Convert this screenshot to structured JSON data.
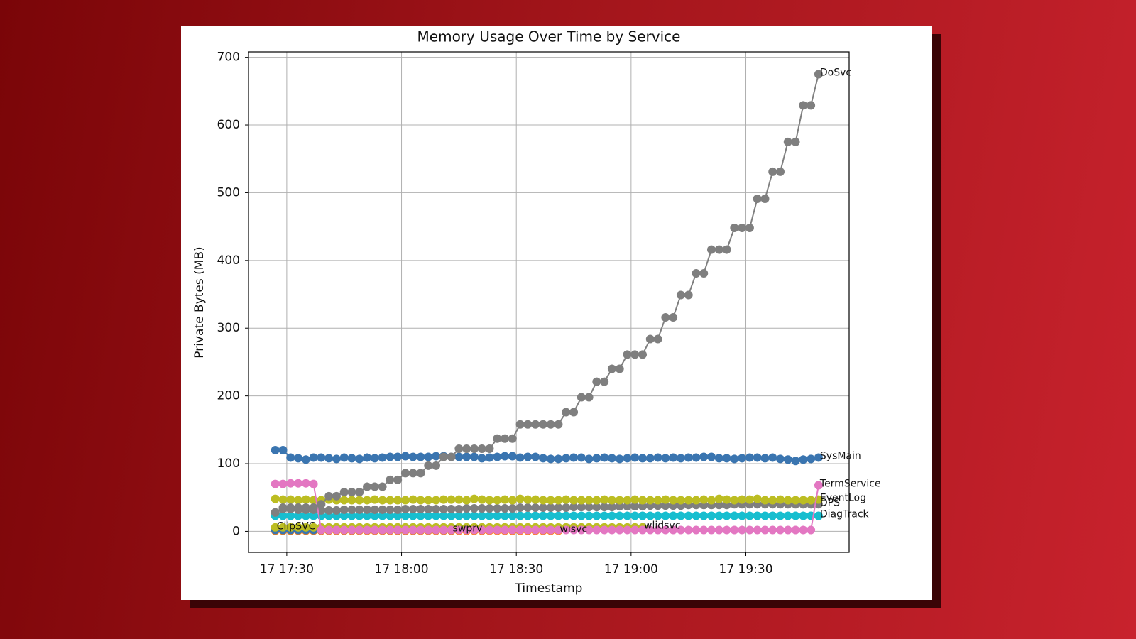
{
  "chart_data": {
    "type": "line",
    "title": "Memory Usage Over Time by Service",
    "xlabel": "Timestamp",
    "ylabel": "Private Bytes (MB)",
    "x": [
      "17 17:27",
      "17 17:29",
      "17 17:31",
      "17 17:33",
      "17 17:35",
      "17 17:37",
      "17 17:39",
      "17 17:41",
      "17 17:43",
      "17 17:45",
      "17 17:47",
      "17 17:49",
      "17 17:51",
      "17 17:53",
      "17 17:55",
      "17 17:57",
      "17 17:59",
      "17 18:01",
      "17 18:03",
      "17 18:05",
      "17 18:07",
      "17 18:09",
      "17 18:11",
      "17 18:13",
      "17 18:15",
      "17 18:17",
      "17 18:19",
      "17 18:21",
      "17 18:23",
      "17 18:25",
      "17 18:27",
      "17 18:29",
      "17 18:31",
      "17 18:33",
      "17 18:35",
      "17 18:37",
      "17 18:39",
      "17 18:41",
      "17 18:43",
      "17 18:45",
      "17 18:47",
      "17 18:49",
      "17 18:51",
      "17 18:53",
      "17 18:55",
      "17 18:57",
      "17 18:59",
      "17 19:01",
      "17 19:03",
      "17 19:05",
      "17 19:07",
      "17 19:09",
      "17 19:11",
      "17 19:13",
      "17 19:15",
      "17 19:17",
      "17 19:19",
      "17 19:21",
      "17 19:23",
      "17 19:25",
      "17 19:27",
      "17 19:29",
      "17 19:31",
      "17 19:33",
      "17 19:35",
      "17 19:37",
      "17 19:39",
      "17 19:41",
      "17 19:43",
      "17 19:45",
      "17 19:47",
      "17 19:49"
    ],
    "xlim": [
      "17 17:20",
      "17 19:57"
    ],
    "xticks": [
      "17 17:30",
      "17 18:00",
      "17 18:30",
      "17 19:00",
      "17 19:30"
    ],
    "ylim": [
      -31,
      708
    ],
    "yticks": [
      0,
      100,
      200,
      300,
      400,
      500,
      600,
      700
    ],
    "grid": true,
    "series": [
      {
        "name": "ClipSVC",
        "color": "#9467bd",
        "values": [
          5,
          null,
          null,
          null,
          null,
          null,
          null,
          null,
          null,
          null,
          null,
          null,
          null,
          null,
          null,
          null,
          null,
          null,
          null,
          null,
          null,
          null,
          null,
          null,
          null,
          null,
          null,
          null,
          null,
          null,
          null,
          null,
          null,
          null,
          null,
          null,
          null,
          null,
          null,
          null,
          null,
          null,
          null,
          null,
          null,
          null,
          null,
          null,
          null,
          null,
          null,
          null,
          null,
          null,
          null,
          null,
          null,
          null,
          null,
          null,
          null,
          null,
          null,
          null,
          null,
          null,
          null,
          null,
          null,
          null,
          null,
          null
        ]
      },
      {
        "name": "wisvc",
        "color": "#ff7f0e",
        "values": [
          1,
          1,
          1,
          1,
          1,
          1,
          1,
          1,
          1,
          1,
          1,
          1,
          1,
          1,
          1,
          1,
          1,
          1,
          1,
          1,
          1,
          1,
          1,
          1,
          1,
          1,
          1,
          1,
          1,
          1,
          1,
          1,
          1,
          1,
          1,
          1,
          1,
          1,
          null,
          null,
          null,
          null,
          null,
          null,
          null,
          null,
          null,
          null,
          null,
          null,
          null,
          null,
          null,
          null,
          null,
          null,
          null,
          null,
          null,
          null,
          null,
          null,
          null,
          null,
          null,
          null,
          null,
          null,
          null,
          null,
          null,
          null
        ]
      },
      {
        "name": "swprv",
        "color": "#3a75b0",
        "values": [
          2,
          2,
          2,
          2,
          2,
          2,
          2,
          2,
          2,
          2,
          2,
          2,
          2,
          2,
          2,
          2,
          2,
          2,
          2,
          2,
          2,
          2,
          2,
          2,
          null,
          null,
          null,
          null,
          null,
          null,
          null,
          null,
          null,
          null,
          null,
          null,
          null,
          null,
          null,
          null,
          null,
          null,
          null,
          null,
          null,
          null,
          null,
          null,
          null,
          null,
          null,
          null,
          null,
          null,
          null,
          null,
          null,
          null,
          null,
          null,
          null,
          null,
          null,
          null,
          null,
          null,
          null,
          null,
          null,
          null,
          null,
          null
        ]
      },
      {
        "name": "wlidsvc",
        "color": "#bcbd22",
        "values": [
          6,
          6,
          6,
          6,
          6,
          6,
          6,
          6,
          6,
          6,
          6,
          6,
          6,
          6,
          6,
          6,
          6,
          6,
          6,
          6,
          6,
          6,
          6,
          6,
          6,
          6,
          6,
          6,
          6,
          6,
          6,
          6,
          6,
          6,
          6,
          6,
          6,
          6,
          6,
          6,
          6,
          6,
          6,
          6,
          6,
          6,
          6,
          6,
          6,
          null,
          null,
          null,
          null,
          null,
          null,
          null,
          null,
          null,
          null,
          null,
          null,
          null,
          null,
          null,
          null,
          null,
          null,
          null,
          null,
          null,
          null,
          null
        ]
      },
      {
        "name": "DiagTrack",
        "color": "#17becf",
        "values": [
          23,
          23,
          23,
          23,
          23,
          23,
          23,
          23,
          23,
          23,
          23,
          23,
          23,
          23,
          23,
          23,
          23,
          23,
          23,
          23,
          23,
          23,
          23,
          23,
          23,
          23,
          23,
          23,
          23,
          23,
          23,
          23,
          23,
          23,
          23,
          23,
          23,
          23,
          23,
          23,
          23,
          23,
          23,
          23,
          23,
          23,
          23,
          23,
          23,
          23,
          23,
          23,
          23,
          23,
          23,
          23,
          23,
          23,
          23,
          23,
          23,
          23,
          23,
          23,
          23,
          23,
          23,
          23,
          23,
          23,
          23,
          23
        ]
      },
      {
        "name": "DPS",
        "color": "#7f7f7f",
        "values": [
          28,
          33,
          33,
          32,
          32,
          32,
          31,
          31,
          31,
          32,
          32,
          32,
          32,
          32,
          32,
          32,
          32,
          33,
          33,
          33,
          33,
          33,
          33,
          33,
          33,
          34,
          34,
          34,
          34,
          34,
          34,
          34,
          35,
          35,
          35,
          35,
          35,
          35,
          35,
          36,
          36,
          36,
          36,
          36,
          36,
          37,
          37,
          37,
          37,
          38,
          38,
          38,
          38,
          38,
          39,
          39,
          39,
          39,
          39,
          39,
          40,
          40,
          40,
          40,
          40,
          40,
          40,
          40,
          40,
          40,
          40,
          40
        ]
      },
      {
        "name": "EventLog",
        "color": "#bcbd22",
        "values": [
          48,
          47,
          47,
          46,
          47,
          46,
          46,
          47,
          46,
          46,
          46,
          46,
          46,
          47,
          46,
          46,
          46,
          46,
          47,
          46,
          46,
          46,
          47,
          47,
          47,
          46,
          48,
          47,
          46,
          46,
          47,
          46,
          48,
          47,
          47,
          46,
          46,
          46,
          47,
          46,
          46,
          46,
          46,
          47,
          46,
          46,
          46,
          47,
          46,
          46,
          46,
          47,
          46,
          46,
          46,
          46,
          47,
          46,
          48,
          47,
          46,
          47,
          47,
          48,
          46,
          46,
          47,
          46,
          46,
          46,
          46,
          47
        ]
      },
      {
        "name": "TermService",
        "color": "#e377c2",
        "values": [
          70,
          70,
          71,
          71,
          71,
          70,
          2,
          2,
          2,
          2,
          2,
          2,
          2,
          2,
          2,
          2,
          2,
          2,
          2,
          2,
          2,
          2,
          2,
          2,
          2,
          2,
          2,
          2,
          2,
          2,
          2,
          2,
          2,
          2,
          2,
          2,
          2,
          2,
          2,
          2,
          2,
          2,
          2,
          2,
          2,
          2,
          2,
          2,
          2,
          2,
          2,
          2,
          2,
          2,
          2,
          2,
          2,
          2,
          2,
          2,
          2,
          2,
          2,
          2,
          2,
          2,
          2,
          2,
          2,
          2,
          2,
          68
        ]
      },
      {
        "name": "SysMain",
        "color": "#3a75b0",
        "values": [
          120,
          120,
          109,
          108,
          106,
          109,
          109,
          108,
          107,
          109,
          108,
          107,
          109,
          108,
          109,
          110,
          110,
          111,
          110,
          110,
          110,
          111,
          111,
          110,
          110,
          110,
          110,
          108,
          109,
          110,
          111,
          111,
          109,
          110,
          110,
          108,
          107,
          107,
          108,
          109,
          109,
          107,
          108,
          109,
          108,
          107,
          108,
          109,
          108,
          108,
          109,
          108,
          109,
          108,
          109,
          109,
          110,
          110,
          108,
          108,
          107,
          108,
          109,
          109,
          108,
          109,
          107,
          106,
          104,
          106,
          107,
          109
        ]
      },
      {
        "name": "DoSvc",
        "color": "#7f7f7f",
        "values": [
          28,
          35,
          35,
          35,
          35,
          35,
          40,
          52,
          52,
          58,
          58,
          58,
          66,
          66,
          66,
          76,
          76,
          86,
          86,
          86,
          97,
          97,
          110,
          110,
          122,
          122,
          122,
          122,
          122,
          137,
          137,
          137,
          158,
          158,
          158,
          158,
          158,
          158,
          176,
          176,
          198,
          198,
          221,
          221,
          240,
          240,
          261,
          261,
          261,
          284,
          284,
          316,
          316,
          349,
          349,
          381,
          381,
          416,
          416,
          416,
          448,
          448,
          448,
          491,
          491,
          531,
          531,
          575,
          575,
          629,
          629,
          675
        ]
      }
    ]
  }
}
